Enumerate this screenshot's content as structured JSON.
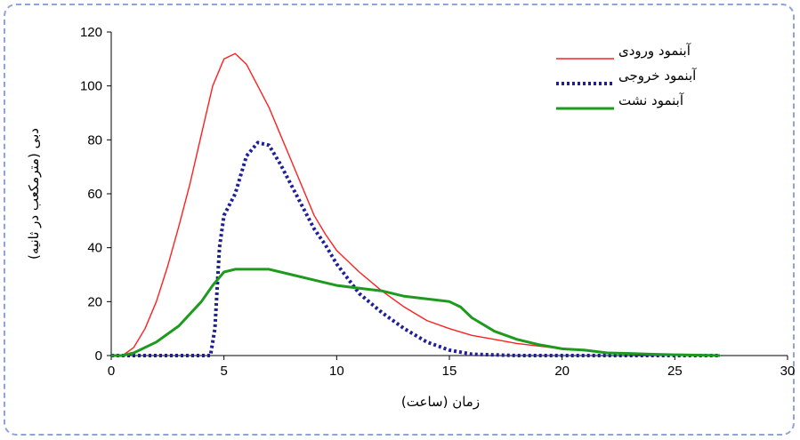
{
  "chart_data": {
    "type": "line",
    "title": "",
    "xlabel": "زمان (ساعت)",
    "ylabel": "دبی (مترمکعب در ثانیه)",
    "xlim": [
      0,
      30
    ],
    "ylim": [
      0,
      120
    ],
    "xticks": [
      "0",
      "5",
      "10",
      "15",
      "20",
      "25",
      "30"
    ],
    "yticks": [
      "0",
      "20",
      "40",
      "60",
      "80",
      "100",
      "120"
    ],
    "grid": false,
    "legend_position": "top-right",
    "series": [
      {
        "name": "آبنمود ورودی",
        "color": "#ff2020",
        "style": "solid",
        "points": [
          [
            0,
            0
          ],
          [
            0.5,
            0
          ],
          [
            1,
            3
          ],
          [
            1.5,
            10
          ],
          [
            2,
            20
          ],
          [
            2.5,
            33
          ],
          [
            3,
            48
          ],
          [
            3.5,
            64
          ],
          [
            4,
            82
          ],
          [
            4.5,
            100
          ],
          [
            5,
            110
          ],
          [
            5.5,
            112
          ],
          [
            6,
            108
          ],
          [
            6.5,
            100
          ],
          [
            7,
            92
          ],
          [
            7.5,
            82
          ],
          [
            8,
            72
          ],
          [
            8.5,
            62
          ],
          [
            9,
            52
          ],
          [
            9.5,
            45
          ],
          [
            10,
            39
          ],
          [
            11,
            31
          ],
          [
            12,
            24
          ],
          [
            13,
            18
          ],
          [
            14,
            13
          ],
          [
            15,
            10
          ],
          [
            16,
            7.5
          ],
          [
            17,
            6
          ],
          [
            18,
            4.5
          ],
          [
            19,
            3.5
          ],
          [
            20,
            2.5
          ],
          [
            21,
            1.8
          ],
          [
            22,
            1.2
          ],
          [
            23,
            0.8
          ],
          [
            24,
            0.5
          ],
          [
            25,
            0.3
          ],
          [
            26,
            0.2
          ],
          [
            27,
            0
          ]
        ]
      },
      {
        "name": "آبنمود خروجی",
        "color": "#1f1f9a",
        "style": "dotted",
        "points": [
          [
            0,
            0
          ],
          [
            4.4,
            0
          ],
          [
            4.6,
            10
          ],
          [
            4.8,
            40
          ],
          [
            5,
            52
          ],
          [
            5.5,
            60
          ],
          [
            6,
            74
          ],
          [
            6.5,
            79
          ],
          [
            7,
            78
          ],
          [
            7.5,
            71
          ],
          [
            8,
            63
          ],
          [
            8.5,
            55
          ],
          [
            9,
            47
          ],
          [
            9.5,
            41
          ],
          [
            10,
            34
          ],
          [
            11,
            23
          ],
          [
            12,
            16
          ],
          [
            13,
            10
          ],
          [
            14,
            5
          ],
          [
            15,
            2
          ],
          [
            16,
            0.5
          ],
          [
            18,
            0
          ],
          [
            22,
            0
          ],
          [
            27,
            0
          ]
        ]
      },
      {
        "name": "آبنمود نشت",
        "color": "#1e9a1e",
        "style": "solid",
        "points": [
          [
            0,
            0
          ],
          [
            0.5,
            0
          ],
          [
            1,
            1
          ],
          [
            2,
            5
          ],
          [
            3,
            11
          ],
          [
            4,
            20
          ],
          [
            4.5,
            26
          ],
          [
            5,
            31
          ],
          [
            5.5,
            32
          ],
          [
            6,
            32
          ],
          [
            7,
            32
          ],
          [
            8,
            30
          ],
          [
            9,
            28
          ],
          [
            10,
            26
          ],
          [
            11,
            25
          ],
          [
            12,
            24
          ],
          [
            13,
            22
          ],
          [
            14,
            21
          ],
          [
            15,
            20
          ],
          [
            15.5,
            18
          ],
          [
            16,
            14
          ],
          [
            17,
            9
          ],
          [
            18,
            6
          ],
          [
            19,
            4
          ],
          [
            20,
            2.5
          ],
          [
            21,
            2
          ],
          [
            22,
            1
          ],
          [
            23,
            0.8
          ],
          [
            24,
            0.5
          ],
          [
            25,
            0.3
          ],
          [
            27,
            0
          ]
        ]
      }
    ]
  }
}
